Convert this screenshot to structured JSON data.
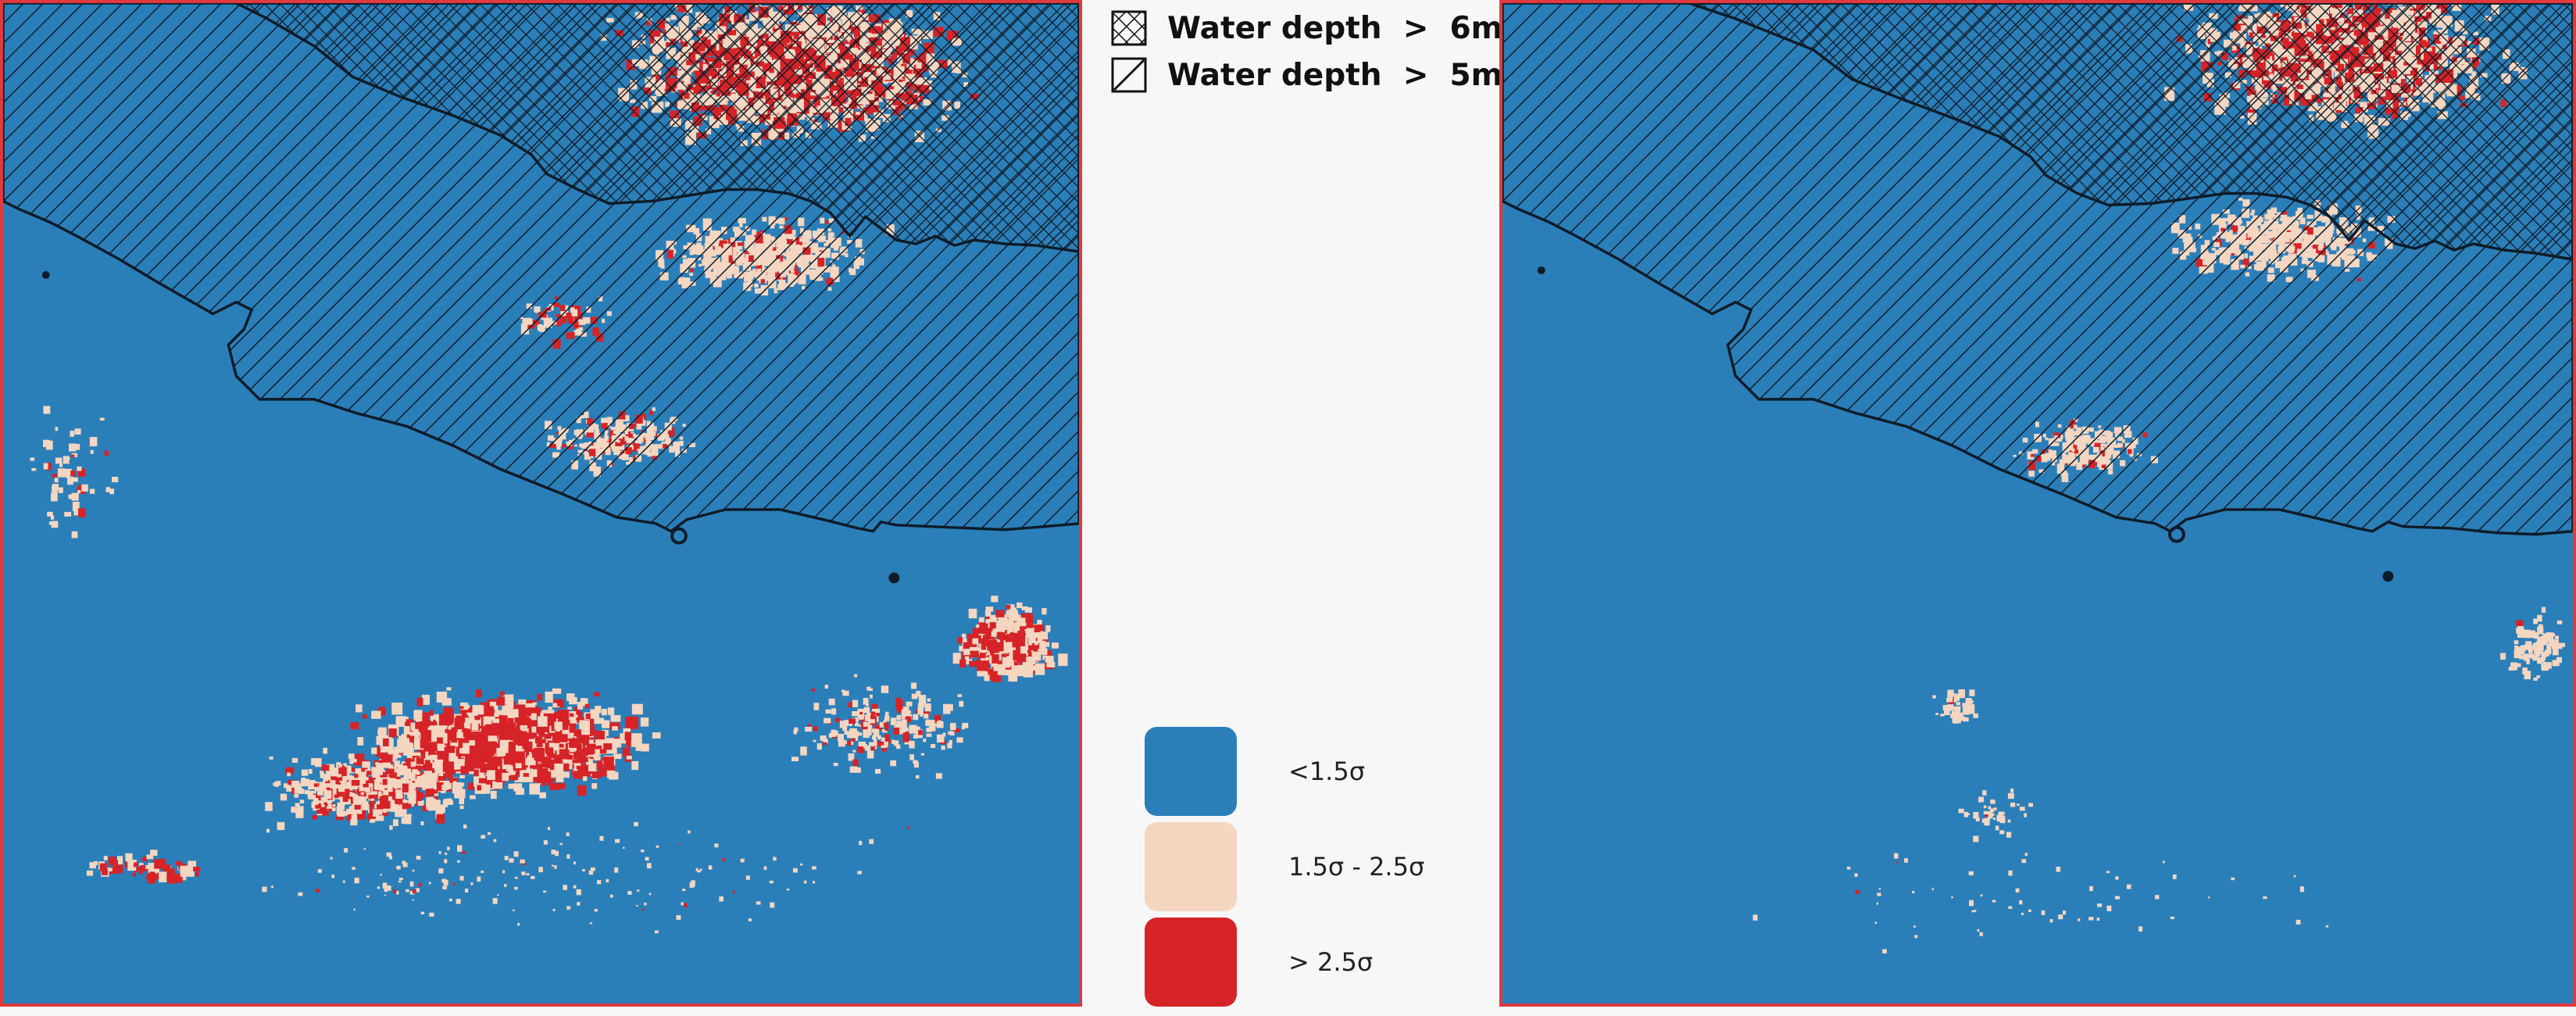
{
  "hatch_legend": [
    {
      "label": "Water depth  >  6m",
      "pattern": "crosshatch-icon"
    },
    {
      "label": "Water depth  >  5m",
      "pattern": "diagonal-hatch-icon"
    }
  ],
  "class_legend": [
    {
      "label": "<1.5σ",
      "color": "#2b7fb9"
    },
    {
      "label": "1.5σ - 2.5σ",
      "color": "#f4d6c1"
    },
    {
      "label": "> 2.5σ",
      "color": "#d62327"
    }
  ],
  "colors": {
    "water": "#2b7fb9",
    "moderate": "#f4d6c1",
    "high": "#d62327",
    "frame": "#e03a3e",
    "outline": "#0d1c28"
  },
  "maps": [
    {
      "id": "left",
      "intensity": "high"
    },
    {
      "id": "right",
      "intensity": "low"
    }
  ]
}
